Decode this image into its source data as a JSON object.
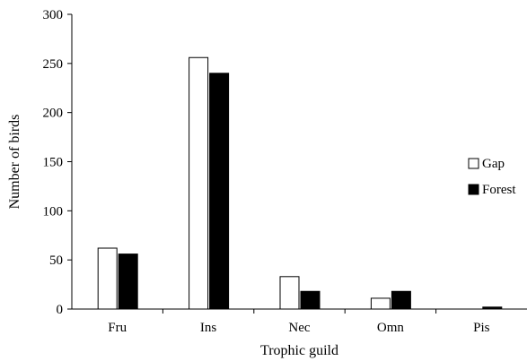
{
  "chart_data": {
    "type": "bar",
    "title": "",
    "xlabel": "Trophic guild",
    "ylabel": "Number of birds",
    "categories": [
      "Fru",
      "Ins",
      "Nec",
      "Omn",
      "Pis"
    ],
    "series": [
      {
        "name": "Gap",
        "values": [
          62,
          256,
          33,
          11,
          0
        ],
        "fill": "#ffffff",
        "stroke": "#000000"
      },
      {
        "name": "Forest",
        "values": [
          56,
          240,
          18,
          18,
          2
        ],
        "fill": "#000000",
        "stroke": "#000000"
      }
    ],
    "ylim": [
      0,
      300
    ],
    "yticks": [
      0,
      50,
      100,
      150,
      200,
      250,
      300
    ],
    "grid": false,
    "legend": {
      "placement": "right",
      "entries": [
        "Gap",
        "Forest"
      ]
    }
  }
}
